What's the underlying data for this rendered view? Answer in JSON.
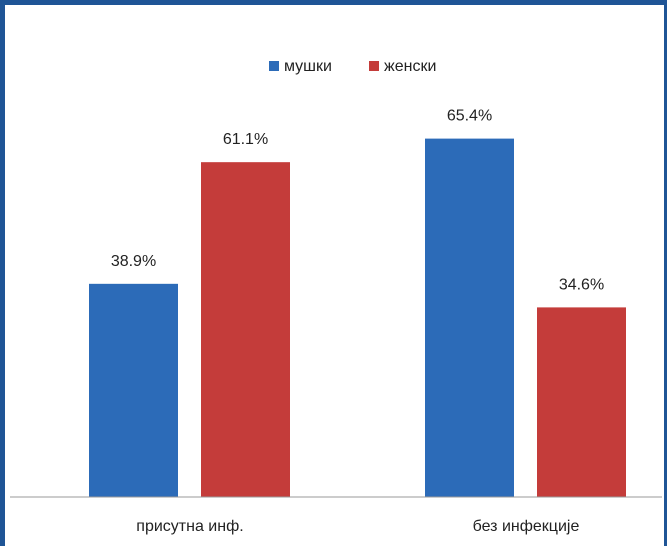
{
  "chart_data": {
    "type": "bar",
    "categories": [
      "присутна инф.",
      "без инфекције"
    ],
    "series": [
      {
        "name": "мушки",
        "values": [
          38.9,
          65.4
        ],
        "labels": [
          "38.9%",
          "65.4%"
        ]
      },
      {
        "name": "женски",
        "values": [
          61.1,
          34.6
        ],
        "labels": [
          "61.1%",
          "34.6%"
        ]
      }
    ],
    "ylim": [
      0,
      100
    ],
    "grid": false,
    "legend": "top",
    "colors": {
      "series_0": "#2c6bb8",
      "series_1": "#c43c3a",
      "border": "#1f5596",
      "axis": "#9a9a9a"
    }
  }
}
